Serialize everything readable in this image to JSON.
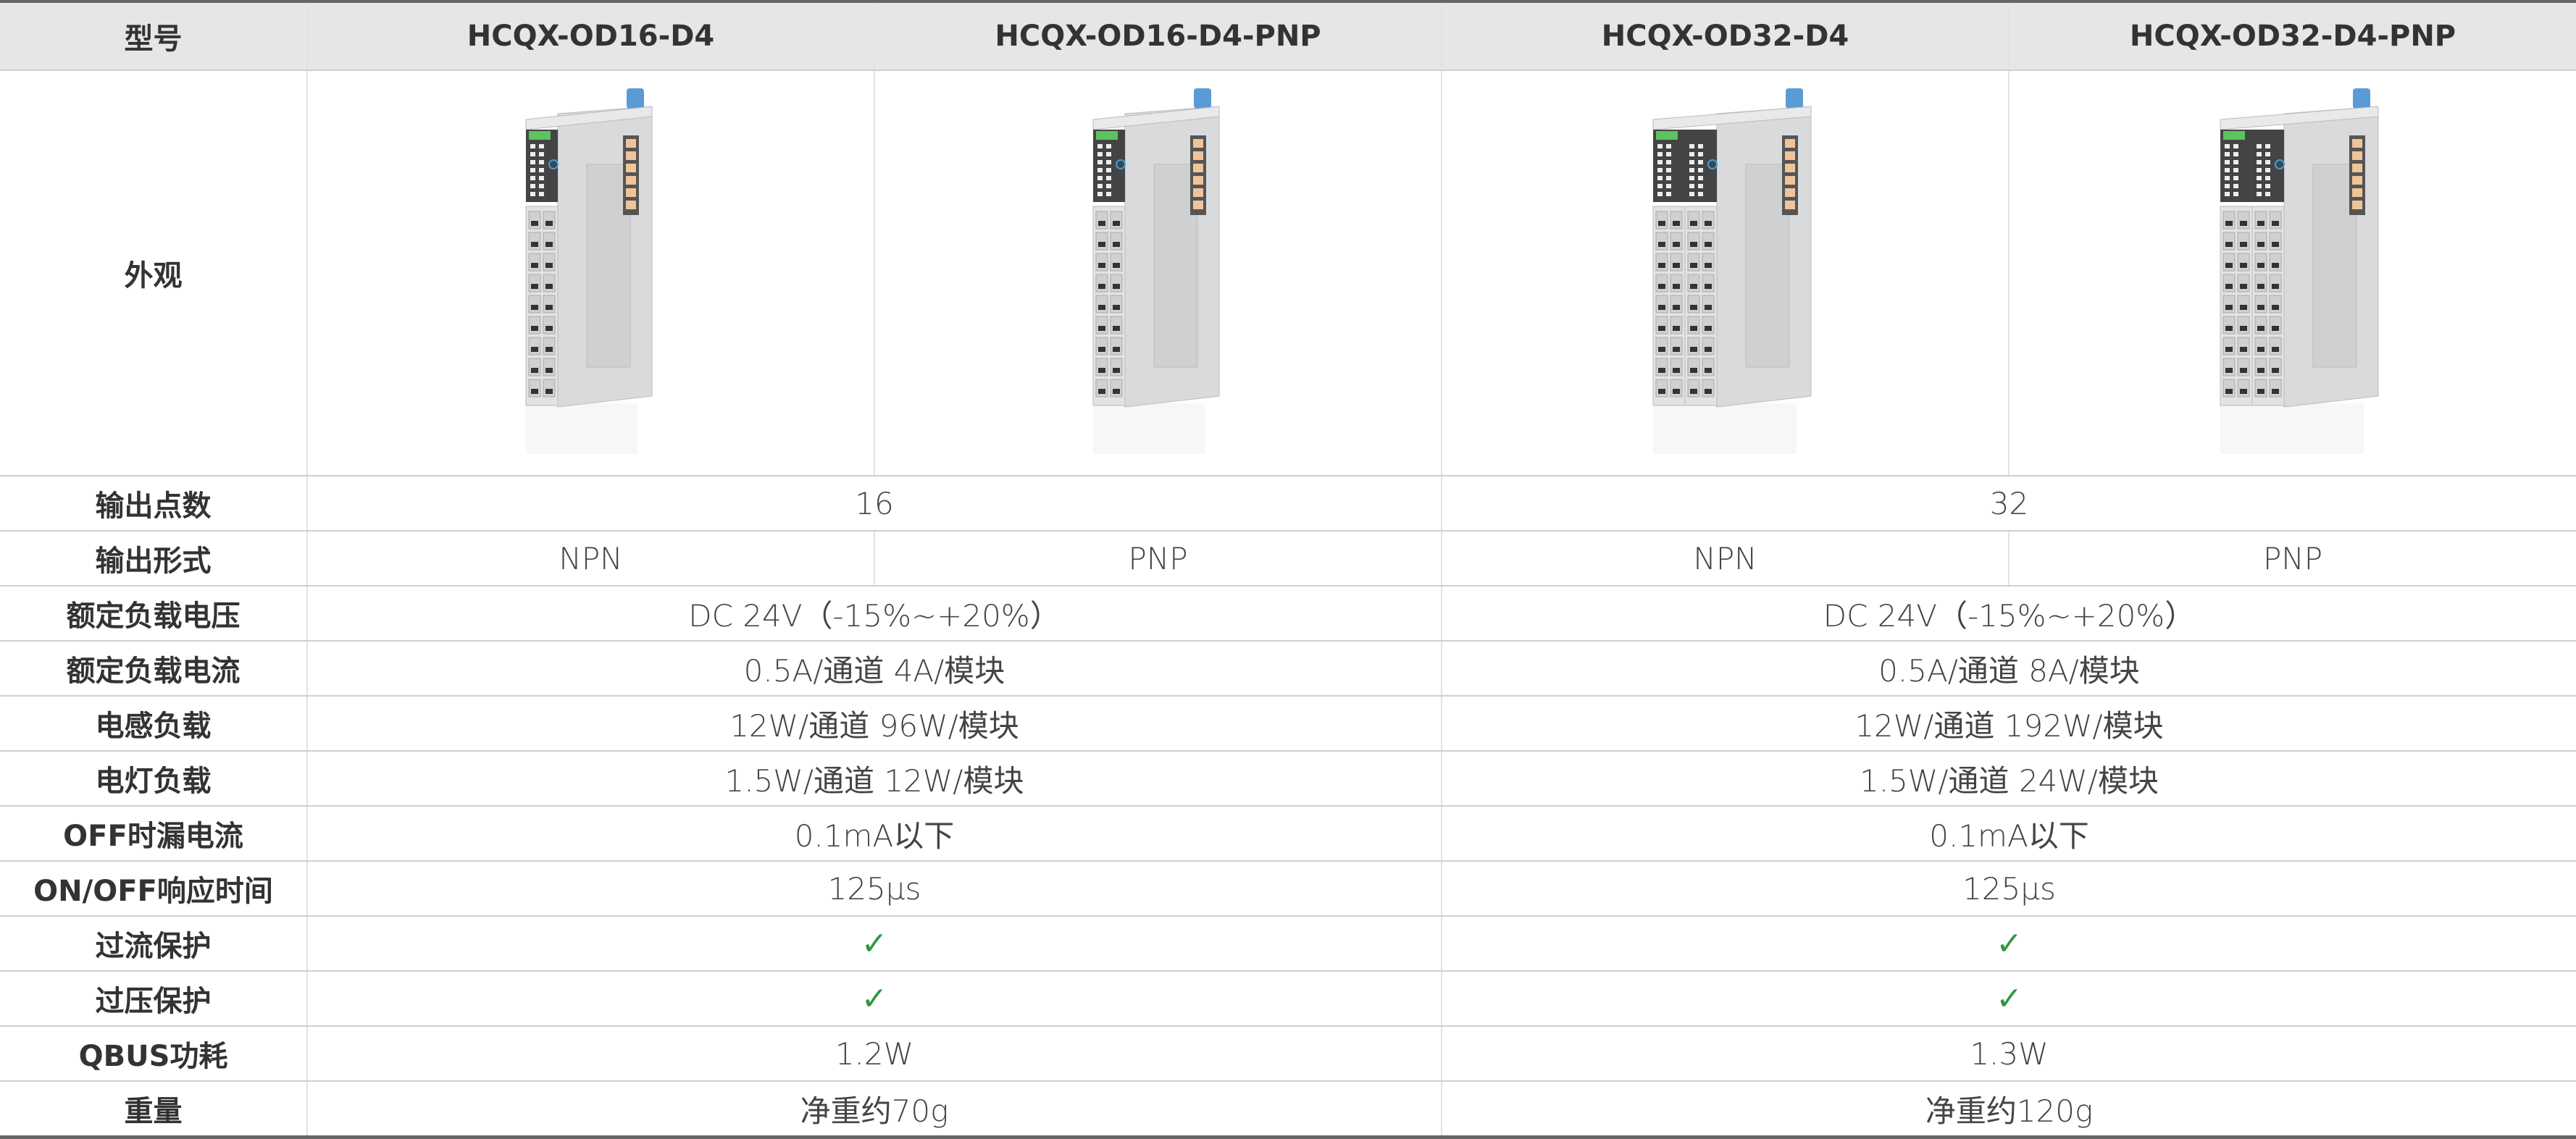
{
  "header": {
    "label": "型号",
    "models": [
      "HCQX-OD16-D4",
      "HCQX-OD16-D4-PNP",
      "HCQX-OD32-D4",
      "HCQX-OD32-D4-PNP"
    ]
  },
  "appearance": {
    "label": "外观",
    "images": [
      {
        "model": "HCQX-OD16-D4",
        "terminal_columns": 1
      },
      {
        "model": "HCQX-OD16-D4-PNP",
        "terminal_columns": 1
      },
      {
        "model": "HCQX-OD32-D4",
        "terminal_columns": 2
      },
      {
        "model": "HCQX-OD32-D4-PNP",
        "terminal_columns": 2
      }
    ]
  },
  "colors": {
    "check": "#2e9a3e",
    "header_bg": "#e6e6e6",
    "module_body": "#d9dadc",
    "latch": "#5b9bd5",
    "label_green": "#5cc45f"
  },
  "rows": [
    {
      "label": "输出点数",
      "split": false,
      "values": [
        "16",
        "32"
      ]
    },
    {
      "label": "输出形式",
      "split": true,
      "values": [
        "NPN",
        "PNP",
        "NPN",
        "PNP"
      ]
    },
    {
      "label": "额定负载电压",
      "split": false,
      "values": [
        "DC 24V（-15%~+20%）",
        "DC 24V（-15%~+20%）"
      ]
    },
    {
      "label": "额定负载电流",
      "split": false,
      "values": [
        "0.5A/通道  4A/模块",
        "0.5A/通道  8A/模块"
      ]
    },
    {
      "label": "电感负载",
      "split": false,
      "values": [
        "12W/通道  96W/模块",
        "12W/通道  192W/模块"
      ]
    },
    {
      "label": "电灯负载",
      "split": false,
      "values": [
        "1.5W/通道  12W/模块",
        "1.5W/通道  24W/模块"
      ]
    },
    {
      "label": "OFF时漏电流",
      "split": false,
      "values": [
        "0.1mA以下",
        "0.1mA以下"
      ]
    },
    {
      "label": "ON/OFF响应时间",
      "split": false,
      "values": [
        "125μs",
        "125μs"
      ]
    },
    {
      "label": "过流保护",
      "split": false,
      "values": [
        "✓",
        "✓"
      ],
      "check": true
    },
    {
      "label": "过压保护",
      "split": false,
      "values": [
        "✓",
        "✓"
      ],
      "check": true
    },
    {
      "label": "QBUS功耗",
      "split": false,
      "values": [
        "1.2W",
        "1.3W"
      ]
    },
    {
      "label": "重量",
      "split": false,
      "values": [
        "净重约70g",
        "净重约120g"
      ]
    }
  ]
}
